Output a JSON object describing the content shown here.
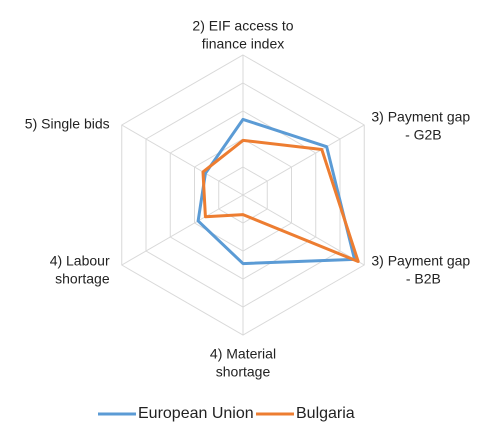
{
  "chart_data": {
    "type": "radar",
    "categories": [
      [
        "2) EIF access to",
        "finance index"
      ],
      [
        "3) Payment gap",
        "- G2B"
      ],
      [
        "3) Payment gap",
        "- B2B"
      ],
      [
        "4) Material",
        "shortage"
      ],
      [
        "4) Labour",
        "shortage"
      ],
      [
        "5) Single bids"
      ]
    ],
    "series": [
      {
        "name": "European Union",
        "color": "#5b9bd5",
        "values": [
          0.54,
          0.69,
          0.92,
          0.49,
          0.37,
          0.31
        ]
      },
      {
        "name": "Bulgaria",
        "color": "#ed7d31",
        "values": [
          0.39,
          0.65,
          0.95,
          0.14,
          0.31,
          0.33
        ]
      }
    ],
    "rlim": [
      0,
      1
    ],
    "rticks": [
      0.2,
      0.4,
      0.6,
      0.8,
      1
    ],
    "grid": true,
    "legend": "bottom"
  }
}
